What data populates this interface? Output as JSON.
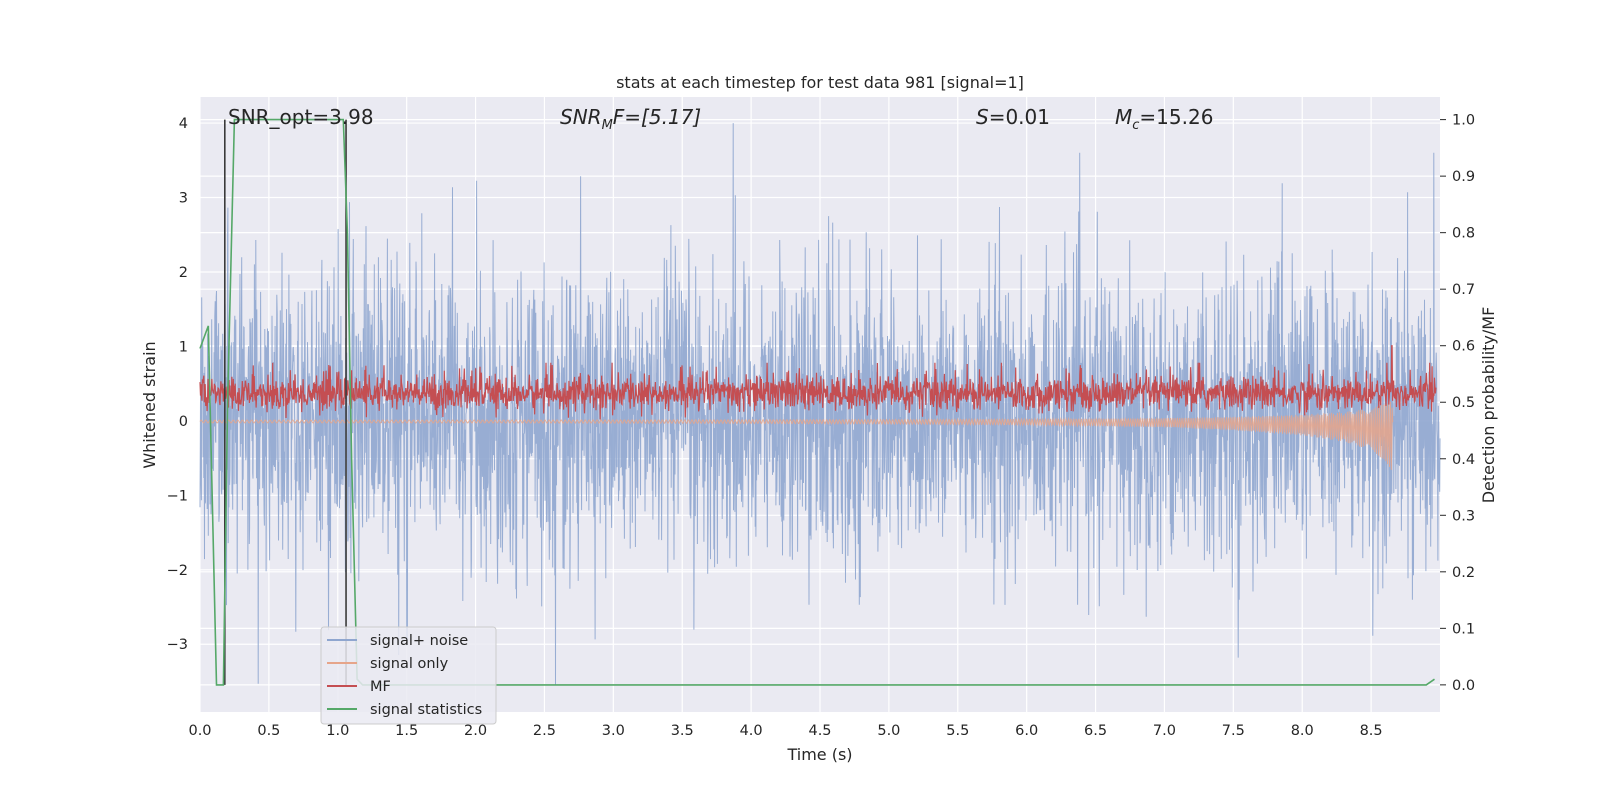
{
  "chart_data": {
    "type": "line",
    "title": "stats at each timestep for test data 981 [signal=1]",
    "xlabel": "Time (s)",
    "ylabel_left": "Whitened strain",
    "ylabel_right": "Detection probability/MF",
    "xlim": [
      0,
      9.0
    ],
    "ylim_left": [
      -3.91,
      4.35
    ],
    "ylim_right": [
      -0.048,
      1.04
    ],
    "x_ticks": [
      "0.0",
      "0.5",
      "1.0",
      "1.5",
      "2.0",
      "2.5",
      "3.0",
      "3.5",
      "4.0",
      "4.5",
      "5.0",
      "5.5",
      "6.0",
      "6.5",
      "7.0",
      "7.5",
      "8.0",
      "8.5"
    ],
    "y_ticks_left": [
      "−3",
      "−2",
      "−1",
      "0",
      "1",
      "2",
      "3",
      "4"
    ],
    "y_ticks_right": [
      "0.0",
      "0.1",
      "0.2",
      "0.3",
      "0.4",
      "0.5",
      "0.6",
      "0.7",
      "0.8",
      "0.9",
      "1.0"
    ],
    "grid": true,
    "legend_position": "lower-left",
    "annotations": {
      "snr_opt": "SNR_opt=3.98",
      "snr_mf_sym": "SNR",
      "snr_mf_sub": "M",
      "snr_mf_rest": "F=[5.17]",
      "s_sym": "S",
      "s_rest": "=0.01",
      "mc_sym": "M",
      "mc_sub": "c",
      "mc_rest": "=15.26"
    },
    "series": [
      {
        "name": "signal+ noise",
        "color": "#8fa6cf",
        "axis": "left",
        "description_values": {
          "typical_range": [
            -2.6,
            3.0
          ],
          "max": 4.0,
          "min": -3.55,
          "max_at_x": 3.87,
          "min_at_x": 2.58
        }
      },
      {
        "name": "signal only",
        "color": "#e6a58a",
        "axis": "left",
        "x": [
          0.0,
          2.0,
          4.0,
          5.0,
          6.0,
          7.0,
          7.5,
          8.0,
          8.3,
          8.5,
          8.6,
          8.65,
          8.66
        ],
        "amplitude": [
          0.02,
          0.02,
          0.025,
          0.03,
          0.04,
          0.06,
          0.09,
          0.14,
          0.2,
          0.28,
          0.38,
          0.5,
          0.0
        ]
      },
      {
        "name": "MF",
        "color": "#c44e52",
        "axis": "right",
        "description_values": {
          "baseline": 0.515,
          "band": [
            0.47,
            0.57
          ],
          "peak": 0.6,
          "peak_at_x": 8.65
        }
      },
      {
        "name": "signal statistics",
        "color": "#55a868",
        "axis": "right",
        "x": [
          0.0,
          0.06,
          0.12,
          0.17,
          0.2,
          0.25,
          0.3,
          1.0,
          1.04,
          1.07,
          1.1,
          1.14,
          1.18,
          1.5,
          8.9,
          8.96
        ],
        "y": [
          0.595,
          0.635,
          0.0,
          0.0,
          0.5,
          1.0,
          1.0,
          1.0,
          1.0,
          0.8,
          0.4,
          0.01,
          0.0,
          0.0,
          0.0,
          0.01
        ]
      }
    ],
    "markers": [
      {
        "name": "signal-start-line",
        "color": "#3a3a3a",
        "x": 0.18,
        "y_right": [
          0.0,
          1.0
        ]
      },
      {
        "name": "signal-end-line",
        "color": "#3a3a3a",
        "x": 1.06,
        "y_right": [
          0.0,
          1.0
        ]
      }
    ]
  }
}
